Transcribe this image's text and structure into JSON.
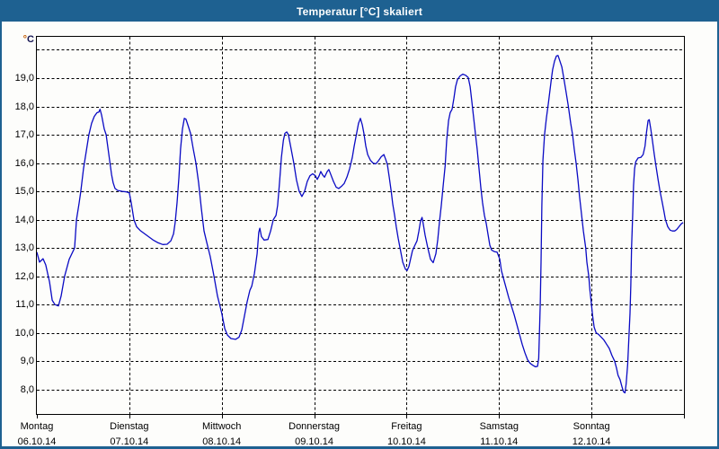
{
  "window": {
    "title": "Temperatur [°C] skaliert"
  },
  "colors": {
    "titlebar": "#1e6191",
    "window_border": "#1e6191",
    "curve": "#0a0ac4",
    "grid": "#000000",
    "background": "#fdfdfb",
    "label": "#000000",
    "unit_degree": "#c25a00",
    "unit_letter": "#141452"
  },
  "y_axis": {
    "unit_degree": "°",
    "unit_letter": "C",
    "ticks": [
      {
        "label": "19,0",
        "value": 19
      },
      {
        "label": "18,0",
        "value": 18
      },
      {
        "label": "17,0",
        "value": 17
      },
      {
        "label": "16,0",
        "value": 16
      },
      {
        "label": "15,0",
        "value": 15
      },
      {
        "label": "14,0",
        "value": 14
      },
      {
        "label": "13,0",
        "value": 13
      },
      {
        "label": "12,0",
        "value": 12
      },
      {
        "label": "11,0",
        "value": 11
      },
      {
        "label": "10,0",
        "value": 10
      },
      {
        "label": "9,0",
        "value": 9
      },
      {
        "label": "8,0",
        "value": 8
      }
    ]
  },
  "x_axis": {
    "days": [
      {
        "name": "Montag",
        "date": "06.10.14"
      },
      {
        "name": "Dienstag",
        "date": "07.10.14"
      },
      {
        "name": "Mittwoch",
        "date": "08.10.14"
      },
      {
        "name": "Donnerstag",
        "date": "09.10.14"
      },
      {
        "name": "Freitag",
        "date": "10.10.14"
      },
      {
        "name": "Samstag",
        "date": "11.10.14"
      },
      {
        "name": "Sonntag",
        "date": "12.10.14"
      }
    ]
  },
  "chart_data": {
    "type": "line",
    "title": "Temperatur [°C] skaliert",
    "y_unit": "°C",
    "x_unit": "hours since Monday 06.10.14 00:00",
    "categories": [
      "Montag 06.10.14",
      "Dienstag 07.10.14",
      "Mittwoch 08.10.14",
      "Donnerstag 09.10.14",
      "Freitag 10.10.14",
      "Samstag 11.10.14",
      "Sonntag 12.10.14"
    ],
    "x_range_hours": [
      0,
      168
    ],
    "ylim": [
      7.1,
      20.5
    ],
    "y_gridlines": [
      8,
      9,
      10,
      11,
      12,
      13,
      14,
      15,
      16,
      17,
      18,
      19,
      20
    ],
    "day_boundaries_hours": [
      24,
      48,
      72,
      96,
      120,
      144
    ],
    "grid": "dashed",
    "legend": "none",
    "series": [
      {
        "name": "Temperatur",
        "points": [
          [
            0,
            12.85
          ],
          [
            0.7,
            12.5
          ],
          [
            1.6,
            12.62
          ],
          [
            2.3,
            12.4
          ],
          [
            3.3,
            11.8
          ],
          [
            4,
            11.15
          ],
          [
            4.7,
            11
          ],
          [
            5.6,
            10.95
          ],
          [
            6.3,
            11.3
          ],
          [
            7.2,
            12
          ],
          [
            8.4,
            12.6
          ],
          [
            9.8,
            13
          ],
          [
            10.3,
            14
          ],
          [
            11,
            14.6
          ],
          [
            11.4,
            15
          ],
          [
            12.1,
            15.8
          ],
          [
            12.8,
            16.4
          ],
          [
            13.5,
            17
          ],
          [
            14.2,
            17.4
          ],
          [
            14.9,
            17.65
          ],
          [
            15.6,
            17.78
          ],
          [
            16.1,
            17.8
          ],
          [
            16.4,
            17.9
          ],
          [
            16.8,
            17.7
          ],
          [
            17.5,
            17.2
          ],
          [
            18,
            17
          ],
          [
            18.7,
            16.3
          ],
          [
            19.4,
            15.6
          ],
          [
            19.8,
            15.3
          ],
          [
            20.3,
            15.1
          ],
          [
            21,
            15.03
          ],
          [
            22.2,
            15
          ],
          [
            23.3,
            14.98
          ],
          [
            24,
            14.95
          ],
          [
            24.5,
            14.6
          ],
          [
            25.2,
            14
          ],
          [
            25.9,
            13.75
          ],
          [
            26.8,
            13.62
          ],
          [
            28,
            13.5
          ],
          [
            29.2,
            13.38
          ],
          [
            30.3,
            13.27
          ],
          [
            31.5,
            13.18
          ],
          [
            32.7,
            13.12
          ],
          [
            33.8,
            13.13
          ],
          [
            34.8,
            13.25
          ],
          [
            35.5,
            13.5
          ],
          [
            35.9,
            13.9
          ],
          [
            36.4,
            14.6
          ],
          [
            36.9,
            15.5
          ],
          [
            37.3,
            16.5
          ],
          [
            37.8,
            17.2
          ],
          [
            38.3,
            17.58
          ],
          [
            38.7,
            17.55
          ],
          [
            39.2,
            17.35
          ],
          [
            39.9,
            17.05
          ],
          [
            40.6,
            16.5
          ],
          [
            41.3,
            16
          ],
          [
            42,
            15.3
          ],
          [
            42.7,
            14.4
          ],
          [
            43.4,
            13.6
          ],
          [
            44.1,
            13.2
          ],
          [
            45,
            12.7
          ],
          [
            46,
            12
          ],
          [
            46.9,
            11.3
          ],
          [
            48,
            10.7
          ],
          [
            48.8,
            10.15
          ],
          [
            49.5,
            9.92
          ],
          [
            50.4,
            9.8
          ],
          [
            51.6,
            9.77
          ],
          [
            52.5,
            9.85
          ],
          [
            53.2,
            10.1
          ],
          [
            53.9,
            10.6
          ],
          [
            54.6,
            11.1
          ],
          [
            55.3,
            11.5
          ],
          [
            55.8,
            11.65
          ],
          [
            56.5,
            12.1
          ],
          [
            57.2,
            12.8
          ],
          [
            57.6,
            13.55
          ],
          [
            57.9,
            13.7
          ],
          [
            58.3,
            13.4
          ],
          [
            59,
            13.28
          ],
          [
            60,
            13.3
          ],
          [
            60.7,
            13.6
          ],
          [
            61.4,
            14
          ],
          [
            62.1,
            14.15
          ],
          [
            62.5,
            14.5
          ],
          [
            63,
            15.3
          ],
          [
            63.5,
            16.2
          ],
          [
            64,
            16.8
          ],
          [
            64.4,
            17.05
          ],
          [
            64.9,
            17.1
          ],
          [
            65.3,
            17
          ],
          [
            66,
            16.5
          ],
          [
            66.7,
            16
          ],
          [
            67.4,
            15.4
          ],
          [
            68.1,
            15
          ],
          [
            68.8,
            14.82
          ],
          [
            69.5,
            15
          ],
          [
            70.2,
            15.35
          ],
          [
            70.9,
            15.55
          ],
          [
            71.6,
            15.62
          ],
          [
            72.3,
            15.55
          ],
          [
            72.8,
            15.42
          ],
          [
            73.3,
            15.55
          ],
          [
            73.7,
            15.7
          ],
          [
            74.2,
            15.58
          ],
          [
            74.7,
            15.5
          ],
          [
            75.4,
            15.7
          ],
          [
            75.8,
            15.77
          ],
          [
            76.3,
            15.6
          ],
          [
            77,
            15.35
          ],
          [
            77.7,
            15.15
          ],
          [
            78.4,
            15.1
          ],
          [
            79.1,
            15.18
          ],
          [
            79.8,
            15.28
          ],
          [
            80.5,
            15.5
          ],
          [
            81.2,
            15.8
          ],
          [
            81.9,
            16.2
          ],
          [
            82.4,
            16.6
          ],
          [
            83.1,
            17.1
          ],
          [
            83.5,
            17.4
          ],
          [
            84,
            17.58
          ],
          [
            84.5,
            17.35
          ],
          [
            84.9,
            17.05
          ],
          [
            85.4,
            16.6
          ],
          [
            85.9,
            16.3
          ],
          [
            86.6,
            16.1
          ],
          [
            87.3,
            16
          ],
          [
            88,
            15.97
          ],
          [
            88.7,
            16.08
          ],
          [
            89.4,
            16.22
          ],
          [
            90.1,
            16.3
          ],
          [
            90.5,
            16.15
          ],
          [
            91,
            15.95
          ],
          [
            91.5,
            15.5
          ],
          [
            92,
            15
          ],
          [
            92.4,
            14.55
          ],
          [
            92.9,
            14.15
          ],
          [
            93.3,
            13.75
          ],
          [
            93.8,
            13.35
          ],
          [
            94.3,
            13
          ],
          [
            95,
            12.5
          ],
          [
            95.7,
            12.25
          ],
          [
            96.1,
            12.2
          ],
          [
            96.6,
            12.35
          ],
          [
            97.1,
            12.65
          ],
          [
            97.5,
            12.9
          ],
          [
            98,
            13.05
          ],
          [
            98.7,
            13.25
          ],
          [
            99.2,
            13.6
          ],
          [
            99.6,
            13.95
          ],
          [
            100,
            14.08
          ],
          [
            100.3,
            13.85
          ],
          [
            100.8,
            13.45
          ],
          [
            101.5,
            13
          ],
          [
            102.2,
            12.6
          ],
          [
            102.9,
            12.48
          ],
          [
            103.6,
            12.8
          ],
          [
            104.1,
            13.3
          ],
          [
            104.5,
            13.9
          ],
          [
            105,
            14.5
          ],
          [
            105.5,
            15.2
          ],
          [
            106,
            15.9
          ],
          [
            106.4,
            16.8
          ],
          [
            106.9,
            17.5
          ],
          [
            107.3,
            17.78
          ],
          [
            107.8,
            17.9
          ],
          [
            108.3,
            18.3
          ],
          [
            108.7,
            18.7
          ],
          [
            109.2,
            18.95
          ],
          [
            109.9,
            19.08
          ],
          [
            110.6,
            19.14
          ],
          [
            111.3,
            19.1
          ],
          [
            112,
            19.02
          ],
          [
            112.5,
            18.7
          ],
          [
            112.9,
            18.2
          ],
          [
            113.4,
            17.6
          ],
          [
            113.9,
            17
          ],
          [
            114.3,
            16.5
          ],
          [
            114.8,
            15.8
          ],
          [
            115.3,
            15.1
          ],
          [
            115.7,
            14.6
          ],
          [
            116.2,
            14.15
          ],
          [
            116.7,
            13.85
          ],
          [
            117.1,
            13.5
          ],
          [
            117.6,
            13.1
          ],
          [
            118.1,
            12.92
          ],
          [
            118.8,
            12.87
          ],
          [
            119.5,
            12.85
          ],
          [
            120.2,
            12.6
          ],
          [
            120.6,
            12.2
          ],
          [
            121.1,
            11.95
          ],
          [
            121.8,
            11.6
          ],
          [
            122.5,
            11.25
          ],
          [
            123.2,
            10.95
          ],
          [
            123.9,
            10.65
          ],
          [
            124.6,
            10.3
          ],
          [
            125.3,
            9.95
          ],
          [
            126,
            9.6
          ],
          [
            126.7,
            9.3
          ],
          [
            127.4,
            9.05
          ],
          [
            128.1,
            8.92
          ],
          [
            128.8,
            8.85
          ],
          [
            129.5,
            8.8
          ],
          [
            130,
            8.82
          ],
          [
            130.3,
            9.1
          ],
          [
            130.7,
            11
          ],
          [
            130.9,
            12.5
          ],
          [
            131.1,
            14.5
          ],
          [
            131.4,
            16.1
          ],
          [
            131.8,
            17
          ],
          [
            132.3,
            17.6
          ],
          [
            132.8,
            18.1
          ],
          [
            133.6,
            19
          ],
          [
            133.9,
            19.3
          ],
          [
            134.4,
            19.6
          ],
          [
            134.9,
            19.78
          ],
          [
            135.3,
            19.8
          ],
          [
            135.8,
            19.6
          ],
          [
            136.3,
            19.4
          ],
          [
            136.8,
            19
          ],
          [
            137.4,
            18.5
          ],
          [
            138,
            18
          ],
          [
            138.6,
            17.4
          ],
          [
            139.1,
            17
          ],
          [
            139.5,
            16.5
          ],
          [
            140,
            16
          ],
          [
            140.5,
            15.4
          ],
          [
            140.9,
            14.8
          ],
          [
            141.4,
            14.2
          ],
          [
            141.9,
            13.6
          ],
          [
            142.5,
            13
          ],
          [
            142.8,
            12.5
          ],
          [
            143.3,
            12
          ],
          [
            143.6,
            11.5
          ],
          [
            144,
            11
          ],
          [
            144.3,
            10.6
          ],
          [
            144.7,
            10.2
          ],
          [
            145.2,
            10
          ],
          [
            145.8,
            9.95
          ],
          [
            146.5,
            9.85
          ],
          [
            147.2,
            9.75
          ],
          [
            147.9,
            9.6
          ],
          [
            148.6,
            9.45
          ],
          [
            149.3,
            9.2
          ],
          [
            150,
            9
          ],
          [
            150.5,
            8.75
          ],
          [
            150.9,
            8.5
          ],
          [
            151.4,
            8.35
          ],
          [
            151.9,
            8.1
          ],
          [
            152.3,
            7.92
          ],
          [
            152.7,
            7.88
          ],
          [
            153,
            8.2
          ],
          [
            153.4,
            8.9
          ],
          [
            153.7,
            9.8
          ],
          [
            154,
            10.7
          ],
          [
            154.2,
            11.7
          ],
          [
            154.4,
            13
          ],
          [
            154.7,
            14.2
          ],
          [
            154.9,
            15.2
          ],
          [
            155.2,
            15.8
          ],
          [
            155.5,
            16.05
          ],
          [
            156.1,
            16.18
          ],
          [
            156.8,
            16.2
          ],
          [
            157.4,
            16.3
          ],
          [
            157.9,
            16.6
          ],
          [
            158.3,
            17.1
          ],
          [
            158.7,
            17.5
          ],
          [
            159,
            17.53
          ],
          [
            159.4,
            17.2
          ],
          [
            159.8,
            16.8
          ],
          [
            160.3,
            16.3
          ],
          [
            160.8,
            15.85
          ],
          [
            161.3,
            15.4
          ],
          [
            161.8,
            15
          ],
          [
            162.3,
            14.65
          ],
          [
            162.8,
            14.3
          ],
          [
            163.2,
            14
          ],
          [
            163.8,
            13.75
          ],
          [
            164.4,
            13.63
          ],
          [
            165,
            13.6
          ],
          [
            165.6,
            13.6
          ],
          [
            166.1,
            13.65
          ],
          [
            166.7,
            13.75
          ],
          [
            167.3,
            13.85
          ],
          [
            167.8,
            13.9
          ]
        ]
      }
    ]
  }
}
